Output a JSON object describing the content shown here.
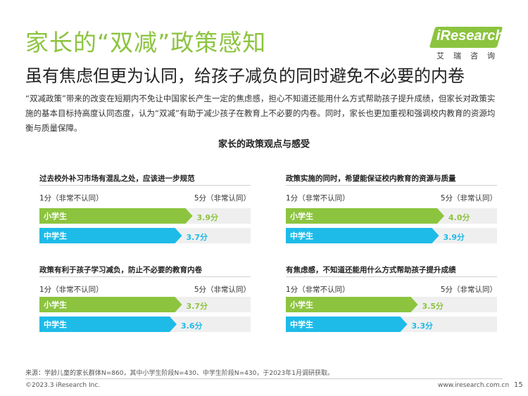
{
  "title": "家长的“双减”政策感知",
  "subtitle": "虽有焦虑但更为认同，给孩子减负的同时避免不必要的内卷",
  "logo": {
    "name": "iResearch",
    "sub": "艾瑞咨询"
  },
  "intro": "“双减政策”带来的改变在短期内不免让中国家长产生一定的焦虑感，担心不知道还能用什么方式帮助孩子提升成绩，但家长对政策实施的基本目标持高度认同态度，认为“双减”有助于减少孩子在教育上不必要的内卷。同时，家长也更加重视和强调校内教育的资源均衡与质量保障。",
  "chart_data": {
    "type": "bar",
    "title": "家长的政策观点与感受",
    "scale": {
      "min": 1,
      "max": 5,
      "min_label": "1分（非常不认同）",
      "max_label": "5分（非常认同）"
    },
    "groups": [
      {
        "title": "过去校外补习市场有混乱之处，应该进一步规范",
        "series": [
          {
            "name": "小学生",
            "value": 3.9,
            "value_label": "3.9分"
          },
          {
            "name": "中学生",
            "value": 3.7,
            "value_label": "3.7分"
          }
        ]
      },
      {
        "title": "政策实施的同时，希望能保证校内教育的资源与质量",
        "series": [
          {
            "name": "小学生",
            "value": 4.0,
            "value_label": "4.0分"
          },
          {
            "name": "中学生",
            "value": 3.9,
            "value_label": "3.9分"
          }
        ]
      },
      {
        "title": "政策有利于孩子学习减负，防止不必要的教育内卷",
        "series": [
          {
            "name": "小学生",
            "value": 3.7,
            "value_label": "3.7分"
          },
          {
            "name": "中学生",
            "value": 3.6,
            "value_label": "3.6分"
          }
        ]
      },
      {
        "title": "有焦虑感，不知道还能用什么方式帮助孩子提升成绩",
        "series": [
          {
            "name": "小学生",
            "value": 3.5,
            "value_label": "3.5分"
          },
          {
            "name": "中学生",
            "value": 3.3,
            "value_label": "3.3分"
          }
        ]
      }
    ],
    "colors": {
      "小学生": "#8cc43f",
      "中学生": "#1ebbe9"
    }
  },
  "source": "来源：学龄儿童的家长群体N=860，其中小学生阶段N=430、中学生阶段N=430，于2023年1月调研获取。",
  "footer": {
    "copyright": "©2023.3 iResearch Inc.",
    "website": "www.iresearch.com.cn",
    "page": "15"
  }
}
